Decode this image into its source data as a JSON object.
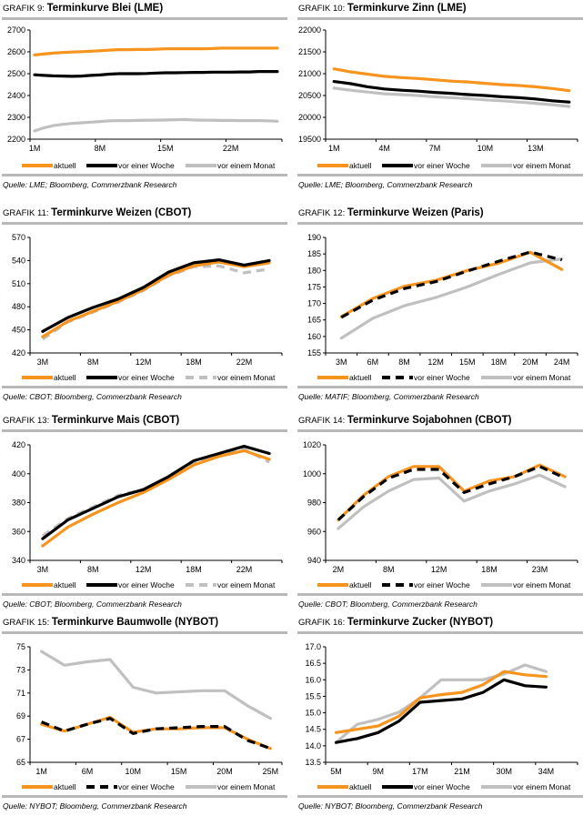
{
  "colors": {
    "aktuell": "#f7941d",
    "woche": "#000000",
    "monat": "#c0c0c0",
    "separator": "#b8b8b8"
  },
  "legend_labels": {
    "aktuell": "aktuell",
    "woche": "vor einer Woche",
    "monat": "vor einem Monat"
  },
  "chart_data": [
    {
      "id": "g9",
      "type": "line",
      "prefix": "GRAFIK 9:",
      "title": "Terminkurve Blei (LME)",
      "source": "Quelle: LME; Bloomberg, Commerzbank Research",
      "xlabel": "",
      "ylabel": "",
      "ylim": [
        2200,
        2700
      ],
      "yticks": [
        2200,
        2300,
        2400,
        2500,
        2600,
        2700
      ],
      "x_count": 27,
      "xtick_labels": [
        {
          "i": 0,
          "label": "1M"
        },
        {
          "i": 7,
          "label": "8M"
        },
        {
          "i": 14,
          "label": "15M"
        },
        {
          "i": 21,
          "label": "22M"
        }
      ],
      "ytick_marks": 6,
      "legend": "bottom",
      "series": [
        {
          "name": "aktuell",
          "style": "solid",
          "values": [
            2586,
            2590,
            2594,
            2597,
            2599,
            2601,
            2603,
            2605,
            2608,
            2610,
            2610,
            2611,
            2611,
            2612,
            2614,
            2614,
            2614,
            2614,
            2614,
            2615,
            2617,
            2617,
            2617,
            2617,
            2617,
            2617,
            2617
          ]
        },
        {
          "name": "vor einer Woche",
          "style": "solid",
          "values": [
            2495,
            2492,
            2490,
            2489,
            2488,
            2489,
            2492,
            2494,
            2498,
            2500,
            2500,
            2500,
            2501,
            2503,
            2504,
            2504,
            2505,
            2506,
            2506,
            2507,
            2507,
            2507,
            2508,
            2508,
            2510,
            2510,
            2510
          ]
        },
        {
          "name": "vor einem Monat",
          "style": "solid",
          "values": [
            2238,
            2252,
            2262,
            2268,
            2272,
            2275,
            2278,
            2281,
            2284,
            2285,
            2285,
            2286,
            2287,
            2287,
            2288,
            2289,
            2290,
            2288,
            2287,
            2287,
            2286,
            2286,
            2285,
            2285,
            2285,
            2284,
            2282
          ]
        }
      ]
    },
    {
      "id": "g10",
      "type": "line",
      "prefix": "GRAFIK 10:",
      "title": "Terminkurve Zinn (LME)",
      "source": "Quelle: LME; Bloomberg, Commerzbank Research",
      "xlabel": "",
      "ylabel": "",
      "ylim": [
        19500,
        22000
      ],
      "yticks": [
        19500,
        20000,
        20500,
        21000,
        21500,
        22000
      ],
      "x_count": 15,
      "xtick_labels": [
        {
          "i": 0,
          "label": "1M"
        },
        {
          "i": 3,
          "label": "4M"
        },
        {
          "i": 6,
          "label": "7M"
        },
        {
          "i": 9,
          "label": "10M"
        },
        {
          "i": 12,
          "label": "13M"
        }
      ],
      "legend": "bottom",
      "series": [
        {
          "name": "aktuell",
          "style": "solid",
          "values": [
            21110,
            21040,
            20990,
            20940,
            20910,
            20890,
            20860,
            20830,
            20810,
            20780,
            20750,
            20730,
            20700,
            20660,
            20610
          ]
        },
        {
          "name": "vor einer Woche",
          "style": "solid",
          "values": [
            20820,
            20770,
            20700,
            20650,
            20620,
            20600,
            20570,
            20550,
            20520,
            20500,
            20470,
            20450,
            20420,
            20380,
            20350
          ]
        },
        {
          "name": "vor einem Monat",
          "style": "solid",
          "values": [
            20670,
            20620,
            20580,
            20540,
            20520,
            20500,
            20470,
            20450,
            20430,
            20400,
            20380,
            20350,
            20320,
            20290,
            20250
          ]
        }
      ]
    },
    {
      "id": "g11",
      "type": "line",
      "prefix": "GRAFIK 11:",
      "title": "Terminkurve Weizen (CBOT)",
      "source": "Quelle: CBOT; Bloomberg, Commerzbank Research",
      "xlabel": "",
      "ylabel": "",
      "ylim": [
        420,
        570
      ],
      "yticks": [
        420,
        450,
        480,
        510,
        540,
        570
      ],
      "x_count": 10,
      "xtick_labels": [
        {
          "i": 0,
          "label": "3M"
        },
        {
          "i": 2,
          "label": "8M"
        },
        {
          "i": 4,
          "label": "12M"
        },
        {
          "i": 6,
          "label": "18M"
        },
        {
          "i": 8,
          "label": "22M"
        }
      ],
      "legend": "bottom",
      "series": [
        {
          "name": "aktuell",
          "style": "solid",
          "values": [
            441,
            461,
            474,
            487,
            502,
            521,
            533,
            538,
            532,
            537
          ]
        },
        {
          "name": "vor einer Woche",
          "style": "solid",
          "values": [
            448,
            466,
            479,
            490,
            505,
            525,
            537,
            541,
            534,
            540
          ]
        },
        {
          "name": "vor einem Monat",
          "style": "dashed",
          "values": [
            438,
            460,
            473,
            486,
            501,
            520,
            532,
            533,
            524,
            529
          ]
        }
      ]
    },
    {
      "id": "g12",
      "type": "line",
      "prefix": "GRAFIK 12:",
      "title": "Terminkurve Weizen (Paris)",
      "source": "Quelle: MATIF; Bloomberg, Commerzbank Research",
      "xlabel": "",
      "ylabel": "",
      "ylim": [
        155,
        190
      ],
      "yticks": [
        155,
        160,
        165,
        170,
        175,
        180,
        185,
        190
      ],
      "x_count": 8,
      "xtick_labels": [
        {
          "i": 0,
          "label": "3M"
        },
        {
          "i": 1,
          "label": "6M"
        },
        {
          "i": 2,
          "label": "8M"
        },
        {
          "i": 3,
          "label": "12M"
        },
        {
          "i": 4,
          "label": "15M"
        },
        {
          "i": 5,
          "label": "18M"
        },
        {
          "i": 6,
          "label": "20M"
        },
        {
          "i": 7,
          "label": "24M"
        }
      ],
      "legend": "bottom",
      "series": [
        {
          "name": "aktuell",
          "style": "solid",
          "values": [
            166,
            171.5,
            175.2,
            177,
            180,
            182.2,
            185.5,
            180.3
          ]
        },
        {
          "name": "vor einer Woche",
          "style": "dashed",
          "values": [
            165.8,
            171,
            174.5,
            176.6,
            179.8,
            182.8,
            185.6,
            183.2
          ]
        },
        {
          "name": "vor einem Monat",
          "style": "solid",
          "values": [
            159.5,
            165.5,
            169.3,
            171.8,
            175,
            178.8,
            182.3,
            183.5
          ]
        }
      ]
    },
    {
      "id": "g13",
      "type": "line",
      "prefix": "GRAFIK 13:",
      "title": "Terminkurve Mais (CBOT)",
      "source": "Quelle: CBOT; Bloomberg, Commerzbank Research",
      "xlabel": "",
      "ylabel": "",
      "ylim": [
        340,
        420
      ],
      "yticks": [
        340,
        360,
        380,
        400,
        420
      ],
      "x_count": 10,
      "xtick_labels": [
        {
          "i": 0,
          "label": "3M"
        },
        {
          "i": 2,
          "label": "8M"
        },
        {
          "i": 4,
          "label": "12M"
        },
        {
          "i": 6,
          "label": "18M"
        },
        {
          "i": 8,
          "label": "22M"
        }
      ],
      "legend": "bottom",
      "series": [
        {
          "name": "aktuell",
          "style": "solid",
          "values": [
            350,
            363,
            372,
            380,
            387,
            396,
            406,
            412,
            416,
            410
          ]
        },
        {
          "name": "vor einer Woche",
          "style": "solid",
          "values": [
            355,
            368,
            376,
            384,
            389,
            398,
            409,
            414,
            419,
            414
          ]
        },
        {
          "name": "vor einem Monat",
          "style": "dashed",
          "values": [
            357,
            369,
            377,
            385,
            389,
            397,
            408,
            413,
            417,
            408
          ]
        }
      ]
    },
    {
      "id": "g14",
      "type": "line",
      "prefix": "GRAFIK 14:",
      "title": "Terminkurve Sojabohnen (CBOT)",
      "source": "Quelle: CBOT; Bloomberg, Commerzbank Research",
      "xlabel": "",
      "ylabel": "",
      "ylim": [
        940,
        1020
      ],
      "yticks": [
        940,
        960,
        980,
        1000,
        1020
      ],
      "x_count": 10,
      "xtick_labels": [
        {
          "i": 0,
          "label": "2M"
        },
        {
          "i": 2,
          "label": "8M"
        },
        {
          "i": 4,
          "label": "12M"
        },
        {
          "i": 6,
          "label": "18M"
        },
        {
          "i": 8,
          "label": "23M"
        }
      ],
      "legend": "bottom",
      "series": [
        {
          "name": "aktuell",
          "style": "solid",
          "values": [
            968,
            985,
            998,
            1005,
            1005,
            988,
            995,
            998,
            1006,
            998
          ]
        },
        {
          "name": "vor einer Woche",
          "style": "dashed",
          "values": [
            968,
            984,
            997,
            1003,
            1003,
            987,
            993,
            998,
            1005,
            997
          ]
        },
        {
          "name": "vor einem Monat",
          "style": "solid",
          "values": [
            962,
            977,
            988,
            996,
            997,
            981,
            988,
            993,
            999,
            991
          ]
        }
      ]
    },
    {
      "id": "g15",
      "type": "line",
      "prefix": "GRAFIK 15:",
      "title": "Terminkurve Baumwolle (NYBOT)",
      "source": "Quelle: NYBOT; Bloomberg, Commerzbank Research",
      "xlabel": "",
      "ylabel": "",
      "ylim": [
        65,
        75
      ],
      "yticks": [
        65,
        67,
        69,
        71,
        73,
        75
      ],
      "x_count": 11,
      "xtick_labels": [
        {
          "i": 0,
          "label": "1M"
        },
        {
          "i": 2,
          "label": "6M"
        },
        {
          "i": 4,
          "label": "10M"
        },
        {
          "i": 6,
          "label": "15M"
        },
        {
          "i": 8,
          "label": "20M"
        },
        {
          "i": 10,
          "label": "25M"
        }
      ],
      "legend": "bottom",
      "series": [
        {
          "name": "aktuell",
          "style": "solid",
          "values": [
            68.3,
            67.7,
            68.3,
            68.9,
            67.6,
            67.9,
            67.9,
            68.0,
            68.0,
            67.0,
            66.2
          ]
        },
        {
          "name": "vor einer Woche",
          "style": "dashed",
          "values": [
            68.5,
            67.7,
            68.3,
            68.8,
            67.5,
            67.9,
            68.0,
            68.1,
            68.1,
            66.9,
            66.2
          ]
        },
        {
          "name": "vor einem Monat",
          "style": "solid",
          "values": [
            74.6,
            73.4,
            73.7,
            73.9,
            71.5,
            71.0,
            71.1,
            71.2,
            71.2,
            69.9,
            68.8
          ]
        }
      ]
    },
    {
      "id": "g16",
      "type": "line",
      "prefix": "GRAFIK 16:",
      "title": "Terminkurve Zucker (NYBOT)",
      "source": "Quelle: NYBOT; Bloomberg, Commerzbank Research",
      "xlabel": "",
      "ylabel": "",
      "ylim": [
        13.5,
        17.0
      ],
      "yticks": [
        "13.5",
        "14.0",
        "14.5",
        "15.0",
        "15.5",
        "16.0",
        "16.5",
        "17.0"
      ],
      "x_count": 12,
      "xtick_labels": [
        {
          "i": 0,
          "label": "5M"
        },
        {
          "i": 2,
          "label": "9M"
        },
        {
          "i": 4,
          "label": "17M"
        },
        {
          "i": 6,
          "label": "21M"
        },
        {
          "i": 8,
          "label": "30M"
        },
        {
          "i": 10,
          "label": "34M"
        }
      ],
      "legend": "bottom",
      "series": [
        {
          "name": "aktuell",
          "style": "solid",
          "values": [
            14.4,
            14.5,
            14.6,
            14.9,
            15.45,
            15.55,
            15.62,
            15.85,
            16.25,
            16.15,
            16.1,
            null
          ]
        },
        {
          "name": "vor einer Woche",
          "style": "solid",
          "values": [
            14.1,
            14.22,
            14.4,
            14.75,
            15.32,
            15.37,
            15.42,
            15.62,
            16.0,
            15.82,
            15.78,
            null
          ]
        },
        {
          "name": "vor einem Monat",
          "style": "solid",
          "values": [
            14.1,
            14.65,
            14.8,
            15.02,
            15.45,
            16.0,
            16.0,
            16.0,
            16.18,
            16.45,
            16.25,
            null
          ]
        }
      ]
    }
  ]
}
